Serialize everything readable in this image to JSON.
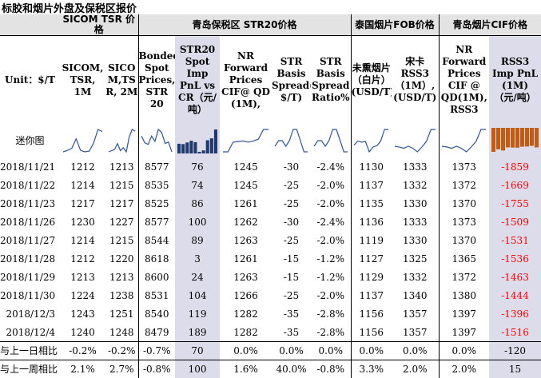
{
  "title": "标胶和烟片外盘及保税区报价",
  "groups": {
    "sicom": "SICOM TSR 价格",
    "str20": "青岛保税区 STR20价格",
    "thai": "泰国烟片FOB价格",
    "cif": "青岛烟片CIF价格"
  },
  "headers": {
    "unit": "Unit：$/T",
    "sicom_1m": "SICOM, TSR, 1M",
    "sicom_2m": "SICO M,TS R, 2M",
    "bonded": "Bonded Spot Prices, STR 20",
    "str20_pnl": "STR20 Spot Imp PnL vs CR（元/吨）",
    "nr_fwd": "NR Forward Prices CIF@ QD (1M),",
    "spread": "STR Basis Spread( $/T)",
    "spread_ratio": "STR Basis Spread Ratio%",
    "thai_smoked": "未熏烟片（白片）(USD/T)",
    "songka": "宋卡 RSS3 （1M）, (USD/T)",
    "cif_fwd": "NR Forward Prices CIF @ QD(1M), RSS3",
    "rss3_pnl": "RSS3 Imp PnL (1M) （元/吨）"
  },
  "mini_label": "迷你图",
  "rows": [
    {
      "date": "2018/11/21",
      "c1": "1212",
      "c2": "1213",
      "c3": "8577",
      "c4": "76",
      "c5": "1245",
      "c6": "-30",
      "c7": "-2.4%",
      "c8": "1130",
      "c9": "1333",
      "c10": "1373",
      "c11": "-1859"
    },
    {
      "date": "2018/11/22",
      "c1": "1214",
      "c2": "1215",
      "c3": "8535",
      "c4": "74",
      "c5": "1245",
      "c6": "-25",
      "c7": "-2.0%",
      "c8": "1137",
      "c9": "1332",
      "c10": "1372",
      "c11": "-1669"
    },
    {
      "date": "2018/11/23",
      "c1": "1217",
      "c2": "1217",
      "c3": "8525",
      "c4": "86",
      "c5": "1261",
      "c6": "-25",
      "c7": "-2.0%",
      "c8": "1135",
      "c9": "1330",
      "c10": "1370",
      "c11": "-1755"
    },
    {
      "date": "2018/11/26",
      "c1": "1230",
      "c2": "1227",
      "c3": "8577",
      "c4": "100",
      "c5": "1262",
      "c6": "-30",
      "c7": "-2.4%",
      "c8": "1136",
      "c9": "1333",
      "c10": "1373",
      "c11": "-1509"
    },
    {
      "date": "2018/11/27",
      "c1": "1214",
      "c2": "1215",
      "c3": "8544",
      "c4": "89",
      "c5": "1263",
      "c6": "-25",
      "c7": "-2.0%",
      "c8": "1119",
      "c9": "1330",
      "c10": "1370",
      "c11": "-1531"
    },
    {
      "date": "2018/11/28",
      "c1": "1212",
      "c2": "1220",
      "c3": "8618",
      "c4": "3",
      "c5": "1261",
      "c6": "-15",
      "c7": "-1.2%",
      "c8": "1127",
      "c9": "1325",
      "c10": "1365",
      "c11": "-1536"
    },
    {
      "date": "2018/11/29",
      "c1": "1213",
      "c2": "1213",
      "c3": "8600",
      "c4": "24",
      "c5": "1263",
      "c6": "-15",
      "c7": "-1.2%",
      "c8": "1129",
      "c9": "1332",
      "c10": "1372",
      "c11": "-1463"
    },
    {
      "date": "2018/11/30",
      "c1": "1224",
      "c2": "1238",
      "c3": "8531",
      "c4": "104",
      "c5": "1266",
      "c6": "-25",
      "c7": "-2.0%",
      "c8": "1137",
      "c9": "1340",
      "c10": "1380",
      "c11": "-1444"
    },
    {
      "date": "2018/12/3",
      "c1": "1243",
      "c2": "1251",
      "c3": "8540",
      "c4": "119",
      "c5": "1282",
      "c6": "-35",
      "c7": "-2.8%",
      "c8": "1156",
      "c9": "1357",
      "c10": "1397",
      "c11": "-1396"
    },
    {
      "date": "2018/12/4",
      "c1": "1240",
      "c2": "1248",
      "c3": "8479",
      "c4": "189",
      "c5": "1282",
      "c6": "-35",
      "c7": "-2.8%",
      "c8": "1156",
      "c9": "1357",
      "c10": "1397",
      "c11": "-1516"
    }
  ],
  "changes": [
    {
      "label": "与上一日相比",
      "c1": "-0.2%",
      "c2": "-0.2%",
      "c3": "-0.7%",
      "c4": "70",
      "c5": "0.0%",
      "c6": "0.0%",
      "c7": "0.0%",
      "c8": "0.0%",
      "c9": "0.0%",
      "c10": "0.0%",
      "c11": "-120"
    },
    {
      "label": "与上一周相比",
      "c1": "2.1%",
      "c2": "2.7%",
      "c3": "-0.8%",
      "c4": "100",
      "c5": "1.6%",
      "c6": "40.0%",
      "c7": "-0.8%",
      "c8": "3.3%",
      "c9": "2.0%",
      "c10": "2.0%",
      "c11": "15"
    }
  ],
  "colors": {
    "line": "#2f5597",
    "bar": "#1f3a6e",
    "neg_bar": "#c55a11",
    "highlight": "#dcdcea",
    "negative_text": "#ff0000"
  }
}
